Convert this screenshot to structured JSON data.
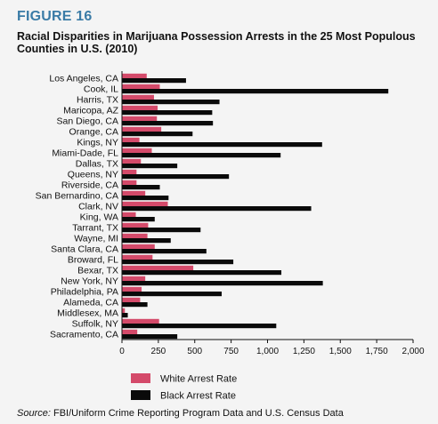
{
  "figure_label": "FIGURE 16",
  "source_prefix": "Source:",
  "source_text": "FBI/Uniform Crime Reporting Program Data and U.S. Census Data",
  "colors": {
    "white": "#d44a6a",
    "black": "#0a0a0a",
    "accent": "#3a7ba6"
  },
  "chart_data": {
    "type": "bar",
    "orientation": "horizontal",
    "title": "Racial Disparities in Marijuana Possession Arrests in the 25 Most Populous Counties in U.S. (2010)",
    "xlim": [
      0,
      2000
    ],
    "x_ticks": [
      "0",
      "250",
      "500",
      "750",
      "1,000",
      "1,250",
      "1,500",
      "1,750",
      "2,000"
    ],
    "x_tick_values": [
      0,
      250,
      500,
      750,
      1000,
      1250,
      1500,
      1750,
      2000
    ],
    "grid": false,
    "legend_position": "bottom",
    "categories": [
      "Los Angeles, CA",
      "Cook, IL",
      "Harris, TX",
      "Maricopa, AZ",
      "San Diego, CA",
      "Orange, CA",
      "Kings, NY",
      "Miami-Dade, FL",
      "Dallas, TX",
      "Queens, NY",
      "Riverside, CA",
      "San Bernardino, CA",
      "Clark, NV",
      "King, WA",
      "Tarrant, TX",
      "Wayne, MI",
      "Santa Clara, CA",
      "Broward, FL",
      "Bexar, TX",
      "New York, NY",
      "Philadelphia, PA",
      "Alameda, CA",
      "Middlesex, MA",
      "Suffolk, NY",
      "Sacramento, CA"
    ],
    "series": [
      {
        "name": "White Arrest Rate",
        "values": [
          170,
          260,
          220,
          245,
          240,
          270,
          120,
          205,
          130,
          100,
          100,
          160,
          315,
          95,
          180,
          175,
          225,
          210,
          490,
          160,
          135,
          125,
          20,
          255,
          105
        ]
      },
      {
        "name": "Black Arrest Rate",
        "values": [
          440,
          1830,
          670,
          620,
          625,
          485,
          1375,
          1090,
          380,
          735,
          260,
          320,
          1300,
          225,
          540,
          335,
          580,
          765,
          1095,
          1380,
          685,
          175,
          40,
          1060,
          380
        ]
      }
    ]
  }
}
